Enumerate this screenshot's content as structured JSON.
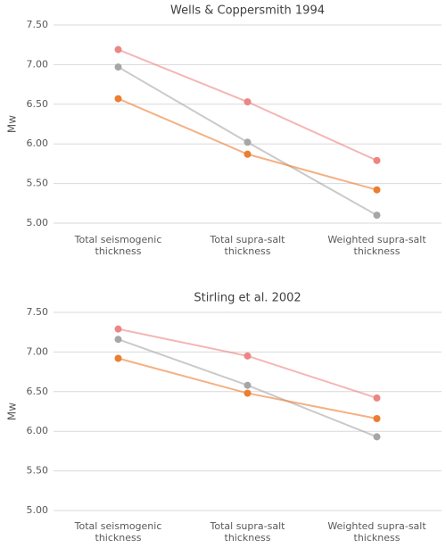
{
  "chart_data": [
    {
      "type": "line",
      "title": "Wells & Coppersmith 1994",
      "y_label": "Mw",
      "categories": [
        "Total seismogenic thickness",
        "Total supra-salt thickness",
        "Weighted supra-salt thickness"
      ],
      "series": [
        {
          "color": "#ec8583",
          "values": [
            7.19,
            6.53,
            5.79
          ]
        },
        {
          "color": "#a6a6a6",
          "values": [
            6.97,
            6.02,
            5.1
          ]
        },
        {
          "color": "#ed7d31",
          "values": [
            6.57,
            5.87,
            5.42
          ]
        }
      ],
      "ylim": [
        5,
        7.5
      ],
      "yticks": [
        {
          "value": 5,
          "label": "5.00"
        },
        {
          "value": 5.5,
          "label": "5.50"
        },
        {
          "value": 6,
          "label": "6.00"
        },
        {
          "value": 6.5,
          "label": "6.50"
        },
        {
          "value": 7,
          "label": "7.00"
        },
        {
          "value": 7.5,
          "label": "7.50"
        }
      ],
      "grid": true
    },
    {
      "type": "line",
      "title": "Stirling et al. 2002",
      "y_label": "Mw",
      "categories": [
        "Total seismogenic thickness",
        "Total supra-salt thickness",
        "Weighted supra-salt thickness"
      ],
      "series": [
        {
          "color": "#ec8583",
          "values": [
            7.29,
            6.95,
            6.42
          ]
        },
        {
          "color": "#a6a6a6",
          "values": [
            7.16,
            6.58,
            5.93
          ]
        },
        {
          "color": "#ed7d31",
          "values": [
            6.92,
            6.48,
            6.16
          ]
        }
      ],
      "ylim": [
        5,
        7.5
      ],
      "yticks": [
        {
          "value": 5,
          "label": "5.00"
        },
        {
          "value": 5.5,
          "label": "5.50"
        },
        {
          "value": 6,
          "label": "6.00"
        },
        {
          "value": 6.5,
          "label": "6.50"
        },
        {
          "value": 7,
          "label": "7.00"
        },
        {
          "value": 7.5,
          "label": "7.50"
        }
      ],
      "grid": true
    }
  ]
}
